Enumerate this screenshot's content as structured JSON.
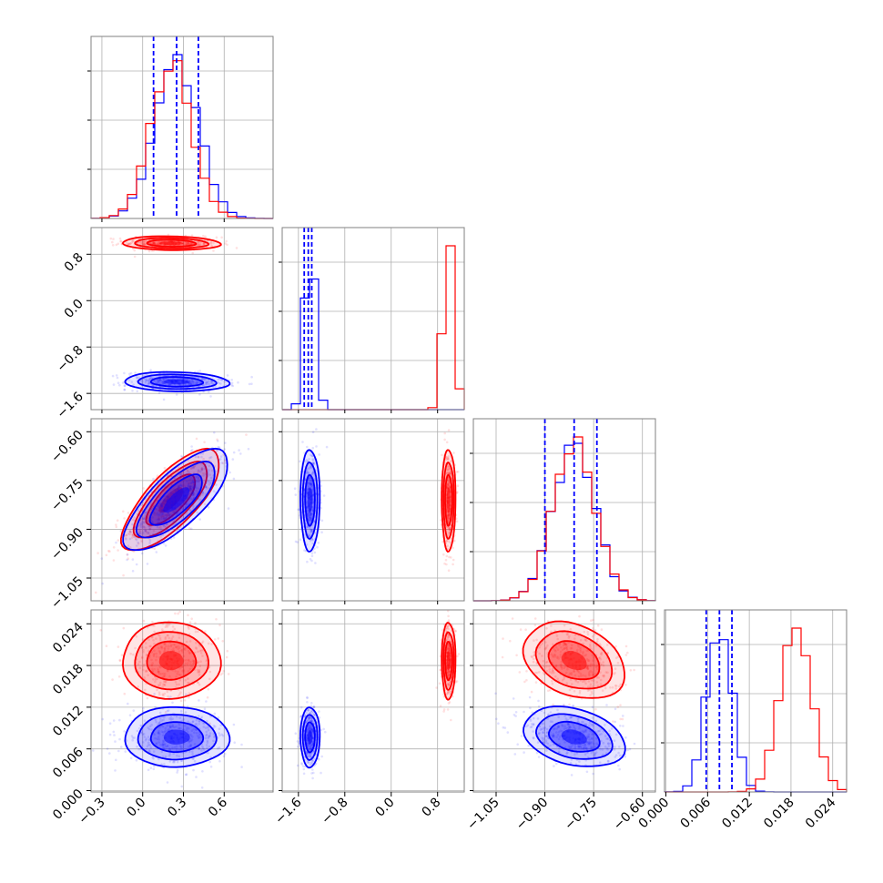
{
  "chart_data": {
    "type": "corner",
    "grid": true,
    "colors": {
      "series_a": "#0000ff",
      "series_b": "#ff0000"
    },
    "series": [
      {
        "color": "#0000ff",
        "quantiles_shown": true
      },
      {
        "color": "#ff0000"
      }
    ],
    "parameters": [
      {
        "range": [
          -0.38,
          0.96
        ],
        "ticks": [
          -0.3,
          0.0,
          0.3,
          0.6
        ],
        "tick_labels": [
          "−0.3",
          "0.0",
          "0.3",
          "0.6"
        ],
        "blue": {
          "mean": 0.25,
          "sd": 0.16,
          "quantiles": [
            0.08,
            0.25,
            0.41
          ]
        },
        "red": {
          "mean": 0.21,
          "sd": 0.15
        }
      },
      {
        "range": [
          -1.88,
          1.26
        ],
        "ticks": [
          -1.6,
          -0.8,
          0.0,
          0.8
        ],
        "tick_labels": [
          "−1.6",
          "−0.8",
          "0.0",
          "0.8"
        ],
        "blue": {
          "mean": -1.4,
          "sd": 0.07,
          "quantiles": [
            -1.5,
            -1.43,
            -1.37
          ]
        },
        "red": {
          "mean": 0.99,
          "sd": 0.05
        }
      },
      {
        "range": [
          -1.12,
          -0.56
        ],
        "ticks": [
          -1.05,
          -0.9,
          -0.75,
          -0.6
        ],
        "tick_labels": [
          "−1.05",
          "−0.90",
          "−0.75",
          "−0.60"
        ],
        "blue": {
          "mean": -0.81,
          "sd": 0.065,
          "quantiles": [
            -0.9,
            -0.81,
            -0.74
          ]
        },
        "red": {
          "mean": -0.81,
          "sd": 0.065
        }
      },
      {
        "range": [
          -0.0002,
          0.026
        ],
        "ticks": [
          0.0,
          0.006,
          0.012,
          0.018,
          0.024
        ],
        "tick_labels": [
          "0.000",
          "0.006",
          "0.012",
          "0.018",
          "0.024"
        ],
        "blue": {
          "mean": 0.0077,
          "sd": 0.0018,
          "quantiles": [
            0.0058,
            0.0077,
            0.0095
          ]
        },
        "red": {
          "mean": 0.0187,
          "sd": 0.0023
        }
      }
    ],
    "correlations": {
      "0-2": 0.75,
      "0-3": 0.0,
      "1-2": 0.0,
      "1-3": 0.0,
      "0-1": -0.1,
      "2-3": -0.3
    }
  }
}
